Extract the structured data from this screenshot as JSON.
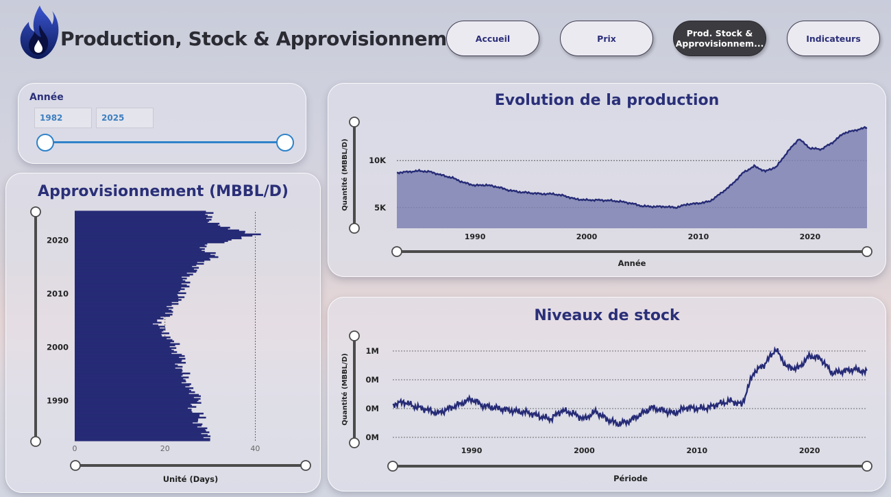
{
  "header": {
    "title": "Production, Stock & Approvisionnement",
    "nav": [
      {
        "label": "Accueil"
      },
      {
        "label": "Prix"
      },
      {
        "label": "Prod. Stock & Approvisionnem..."
      },
      {
        "label": "Indicateurs"
      }
    ]
  },
  "year_slicer": {
    "title": "Année",
    "start": "1982",
    "end": "2025"
  },
  "colors": {
    "accent": "#2a2f78",
    "slider": "#2e82c8",
    "fill": "#7e83b3"
  },
  "icons": [
    "flame-logo-icon"
  ],
  "chart_data": [
    {
      "type": "bar",
      "orientation": "horizontal",
      "title": "Approvisionnement (MBBL/D)",
      "xlabel": "Unité (Days)",
      "ylabel": "",
      "xlim": [
        0,
        41
      ],
      "x_ticks": [
        "0",
        "20",
        "40"
      ],
      "y_ticks": [
        {
          "year": 2020,
          "label": "2020"
        },
        {
          "year": 2010,
          "label": "2010"
        },
        {
          "year": 2000,
          "label": "2000"
        },
        {
          "year": 1990,
          "label": "1990"
        }
      ],
      "y_range": [
        1982.5,
        2025.3
      ],
      "reference_lines": [
        20,
        40
      ],
      "series": [
        {
          "points": [
            [
              1983,
              30
            ],
            [
              1984,
              29
            ],
            [
              1985,
              28
            ],
            [
              1986,
              27.5
            ],
            [
              1987,
              28
            ],
            [
              1988,
              26
            ],
            [
              1989,
              26.5
            ],
            [
              1990,
              27
            ],
            [
              1991,
              27.5
            ],
            [
              1992,
              25.5
            ],
            [
              1993,
              24.5
            ],
            [
              1994,
              25
            ],
            [
              1995,
              24
            ],
            [
              1996,
              23
            ],
            [
              1997,
              24
            ],
            [
              1998,
              23.5
            ],
            [
              1999,
              22.5
            ],
            [
              2000,
              22
            ],
            [
              2001,
              21.5
            ],
            [
              2002,
              20.5
            ],
            [
              2003,
              19.5
            ],
            [
              2004,
              18.5
            ],
            [
              2005,
              19
            ],
            [
              2006,
              20.5
            ],
            [
              2007,
              21.5
            ],
            [
              2008,
              22
            ],
            [
              2009,
              23
            ],
            [
              2010,
              24
            ],
            [
              2011,
              24
            ],
            [
              2012,
              24.5
            ],
            [
              2013,
              25
            ],
            [
              2014,
              26
            ],
            [
              2015,
              27
            ],
            [
              2016,
              29
            ],
            [
              2017,
              31
            ],
            [
              2018,
              29
            ],
            [
              2019,
              28.5
            ],
            [
              2020,
              35
            ],
            [
              2021,
              41
            ],
            [
              2022,
              34
            ],
            [
              2023,
              31
            ],
            [
              2024,
              30
            ],
            [
              2025,
              29
            ]
          ]
        }
      ]
    },
    {
      "type": "area",
      "title": "Evolution de la production",
      "xlabel": "Année",
      "ylabel": "Quantité (MBBL/D)",
      "xlim": [
        1983,
        2025.1
      ],
      "ylim": [
        2800,
        13800
      ],
      "x_ticks": [
        {
          "v": 1990,
          "label": "1990"
        },
        {
          "v": 2000,
          "label": "2000"
        },
        {
          "v": 2010,
          "label": "2010"
        },
        {
          "v": 2020,
          "label": "2020"
        }
      ],
      "y_ticks": [
        {
          "v": 10000,
          "label": "10K"
        },
        {
          "v": 5000,
          "label": "5K"
        }
      ],
      "series": [
        {
          "points": [
            [
              1983,
              8700
            ],
            [
              1984,
              8800
            ],
            [
              1985,
              8900
            ],
            [
              1986,
              8800
            ],
            [
              1987,
              8450
            ],
            [
              1988,
              8150
            ],
            [
              1989,
              7650
            ],
            [
              1990,
              7350
            ],
            [
              1991,
              7400
            ],
            [
              1992,
              7200
            ],
            [
              1993,
              6850
            ],
            [
              1994,
              6650
            ],
            [
              1995,
              6550
            ],
            [
              1996,
              6450
            ],
            [
              1997,
              6450
            ],
            [
              1998,
              6250
            ],
            [
              1999,
              5900
            ],
            [
              2000,
              5800
            ],
            [
              2001,
              5800
            ],
            [
              2002,
              5750
            ],
            [
              2003,
              5650
            ],
            [
              2004,
              5450
            ],
            [
              2005,
              5150
            ],
            [
              2006,
              5100
            ],
            [
              2007,
              5100
            ],
            [
              2008,
              5000
            ],
            [
              2009,
              5350
            ],
            [
              2010,
              5450
            ],
            [
              2011,
              5650
            ],
            [
              2012,
              6500
            ],
            [
              2013,
              7450
            ],
            [
              2014,
              8700
            ],
            [
              2015,
              9400
            ],
            [
              2016,
              8850
            ],
            [
              2017,
              9350
            ],
            [
              2018,
              10950
            ],
            [
              2019,
              12300
            ],
            [
              2020,
              11300
            ],
            [
              2021,
              11200
            ],
            [
              2022,
              11900
            ],
            [
              2023,
              12900
            ],
            [
              2024,
              13200
            ],
            [
              2025,
              13500
            ]
          ]
        }
      ]
    },
    {
      "type": "line",
      "title": "Niveaux de stock",
      "xlabel": "Période",
      "ylabel": "Quantité (MBBL/D)",
      "xlim": [
        1983,
        2025.1
      ],
      "ylim": [
        0.05,
        1.05
      ],
      "x_ticks": [
        {
          "v": 1990,
          "label": "1990"
        },
        {
          "v": 2000,
          "label": "2000"
        },
        {
          "v": 2010,
          "label": "2010"
        },
        {
          "v": 2020,
          "label": "2020"
        }
      ],
      "y_ticks": [
        {
          "v": 0.9,
          "label": "1M"
        },
        {
          "v": 0.6,
          "label": "0M"
        },
        {
          "v": 0.3,
          "label": "0M"
        },
        {
          "v": 0.0,
          "label": "0M"
        }
      ],
      "series": [
        {
          "points": [
            [
              1983,
              0.34
            ],
            [
              1984,
              0.37
            ],
            [
              1985,
              0.32
            ],
            [
              1986,
              0.29
            ],
            [
              1987,
              0.25
            ],
            [
              1988,
              0.3
            ],
            [
              1989,
              0.35
            ],
            [
              1990,
              0.4
            ],
            [
              1991,
              0.33
            ],
            [
              1992,
              0.31
            ],
            [
              1993,
              0.29
            ],
            [
              1994,
              0.27
            ],
            [
              1995,
              0.26
            ],
            [
              1996,
              0.22
            ],
            [
              1997,
              0.19
            ],
            [
              1998,
              0.28
            ],
            [
              1999,
              0.25
            ],
            [
              2000,
              0.19
            ],
            [
              2001,
              0.27
            ],
            [
              2002,
              0.19
            ],
            [
              2003,
              0.14
            ],
            [
              2004,
              0.17
            ],
            [
              2005,
              0.24
            ],
            [
              2006,
              0.31
            ],
            [
              2007,
              0.28
            ],
            [
              2008,
              0.25
            ],
            [
              2009,
              0.31
            ],
            [
              2010,
              0.3
            ],
            [
              2011,
              0.31
            ],
            [
              2012,
              0.35
            ],
            [
              2013,
              0.38
            ],
            [
              2014,
              0.34
            ],
            [
              2015,
              0.67
            ],
            [
              2016,
              0.76
            ],
            [
              2017,
              0.92
            ],
            [
              2018,
              0.73
            ],
            [
              2019,
              0.72
            ],
            [
              2020,
              0.85
            ],
            [
              2021,
              0.82
            ],
            [
              2022,
              0.67
            ],
            [
              2023,
              0.69
            ],
            [
              2024,
              0.71
            ],
            [
              2025,
              0.68
            ]
          ]
        }
      ]
    }
  ]
}
